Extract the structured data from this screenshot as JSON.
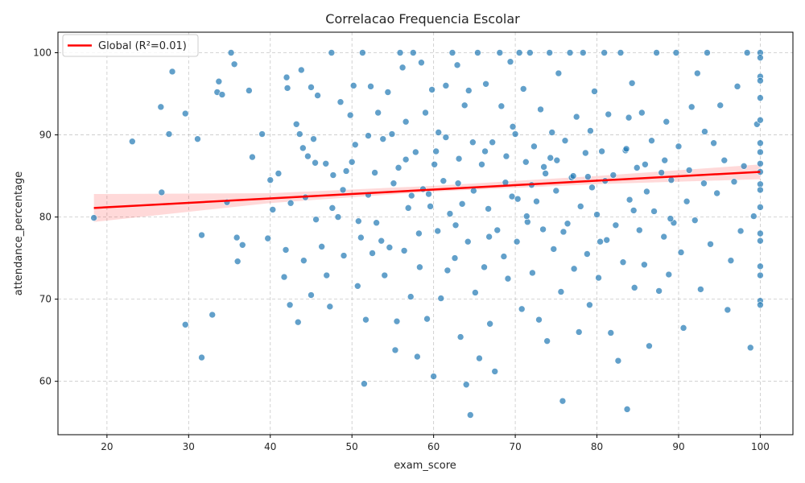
{
  "chart_data": {
    "type": "scatter",
    "title": "Correlacao Frequencia Escolar",
    "xlabel": "exam_score",
    "ylabel": "attendance_percentage",
    "xlim": [
      14,
      104
    ],
    "ylim": [
      53.5,
      102.5
    ],
    "xticks": [
      20,
      30,
      40,
      50,
      60,
      70,
      80,
      90,
      100
    ],
    "yticks": [
      60,
      70,
      80,
      90,
      100
    ],
    "grid": true,
    "legend": {
      "placement": "top-left",
      "entries": [
        "Global (R²=0.01)"
      ]
    },
    "series": [
      {
        "kind": "points",
        "color": "#1f77b4",
        "points": [
          [
            18.4,
            79.9
          ],
          [
            23.1,
            89.2
          ],
          [
            26.6,
            93.4
          ],
          [
            26.7,
            83.0
          ],
          [
            27.6,
            90.1
          ],
          [
            28.0,
            97.7
          ],
          [
            29.6,
            92.6
          ],
          [
            29.6,
            66.9
          ],
          [
            31.1,
            89.5
          ],
          [
            31.6,
            77.8
          ],
          [
            31.6,
            62.9
          ],
          [
            32.9,
            68.1
          ],
          [
            33.5,
            95.2
          ],
          [
            33.7,
            96.5
          ],
          [
            34.1,
            94.9
          ],
          [
            34.7,
            81.8
          ],
          [
            35.2,
            100.0
          ],
          [
            35.6,
            98.6
          ],
          [
            35.9,
            77.5
          ],
          [
            36.0,
            74.6
          ],
          [
            36.6,
            76.6
          ],
          [
            37.4,
            95.4
          ],
          [
            37.8,
            87.3
          ],
          [
            39.0,
            90.1
          ],
          [
            39.7,
            77.4
          ],
          [
            40.0,
            84.5
          ],
          [
            40.3,
            80.9
          ],
          [
            41.0,
            85.3
          ],
          [
            41.7,
            72.7
          ],
          [
            41.9,
            76.0
          ],
          [
            42.0,
            97.0
          ],
          [
            42.1,
            95.7
          ],
          [
            42.4,
            69.3
          ],
          [
            42.5,
            81.7
          ],
          [
            43.2,
            91.3
          ],
          [
            43.4,
            67.2
          ],
          [
            43.6,
            90.1
          ],
          [
            43.8,
            97.9
          ],
          [
            44.0,
            88.4
          ],
          [
            44.1,
            74.7
          ],
          [
            44.3,
            82.4
          ],
          [
            44.6,
            87.4
          ],
          [
            45.0,
            95.8
          ],
          [
            45.0,
            70.5
          ],
          [
            45.3,
            89.5
          ],
          [
            45.5,
            86.6
          ],
          [
            45.6,
            79.7
          ],
          [
            45.8,
            94.8
          ],
          [
            46.3,
            76.4
          ],
          [
            46.8,
            86.5
          ],
          [
            46.9,
            72.9
          ],
          [
            47.3,
            69.1
          ],
          [
            47.5,
            100.0
          ],
          [
            47.6,
            81.1
          ],
          [
            48.3,
            80.0
          ],
          [
            48.6,
            94.0
          ],
          [
            49.0,
            75.3
          ],
          [
            49.3,
            85.6
          ],
          [
            49.8,
            92.4
          ],
          [
            50.0,
            86.7
          ],
          [
            50.2,
            96.0
          ],
          [
            50.4,
            88.8
          ],
          [
            50.7,
            71.6
          ],
          [
            51.1,
            77.5
          ],
          [
            51.3,
            100.0
          ],
          [
            51.5,
            59.7
          ],
          [
            51.7,
            67.5
          ],
          [
            52.0,
            82.7
          ],
          [
            52.3,
            95.9
          ],
          [
            52.5,
            75.6
          ],
          [
            52.8,
            85.4
          ],
          [
            53.0,
            79.3
          ],
          [
            53.2,
            92.7
          ],
          [
            53.6,
            77.1
          ],
          [
            54.0,
            72.9
          ],
          [
            54.4,
            95.2
          ],
          [
            54.9,
            90.1
          ],
          [
            55.1,
            84.1
          ],
          [
            55.3,
            63.8
          ],
          [
            55.5,
            67.3
          ],
          [
            55.9,
            100.0
          ],
          [
            56.2,
            98.2
          ],
          [
            56.4,
            75.9
          ],
          [
            56.6,
            87.0
          ],
          [
            56.9,
            81.1
          ],
          [
            57.2,
            70.3
          ],
          [
            57.5,
            100.0
          ],
          [
            57.8,
            87.9
          ],
          [
            58.0,
            63.0
          ],
          [
            58.3,
            73.9
          ],
          [
            58.5,
            98.8
          ],
          [
            58.7,
            83.4
          ],
          [
            59.0,
            92.7
          ],
          [
            59.2,
            67.6
          ],
          [
            59.4,
            82.8
          ],
          [
            59.8,
            95.5
          ],
          [
            60.0,
            60.6
          ],
          [
            60.1,
            86.4
          ],
          [
            60.5,
            78.3
          ],
          [
            60.6,
            90.3
          ],
          [
            60.9,
            70.1
          ],
          [
            61.2,
            84.4
          ],
          [
            61.5,
            96.0
          ],
          [
            61.7,
            73.5
          ],
          [
            62.0,
            80.4
          ],
          [
            62.3,
            100.0
          ],
          [
            62.6,
            75.0
          ],
          [
            62.9,
            98.5
          ],
          [
            63.1,
            87.1
          ],
          [
            63.3,
            65.4
          ],
          [
            63.5,
            81.6
          ],
          [
            63.8,
            93.6
          ],
          [
            64.0,
            59.6
          ],
          [
            64.2,
            77.0
          ],
          [
            64.5,
            55.9
          ],
          [
            64.8,
            89.1
          ],
          [
            65.1,
            70.8
          ],
          [
            65.4,
            100.0
          ],
          [
            65.6,
            62.8
          ],
          [
            65.9,
            86.4
          ],
          [
            66.2,
            73.9
          ],
          [
            66.4,
            96.2
          ],
          [
            66.7,
            81.0
          ],
          [
            66.9,
            67.0
          ],
          [
            67.2,
            89.1
          ],
          [
            67.5,
            61.2
          ],
          [
            67.8,
            78.4
          ],
          [
            68.1,
            100.0
          ],
          [
            68.3,
            93.5
          ],
          [
            68.6,
            75.2
          ],
          [
            68.8,
            84.2
          ],
          [
            69.1,
            72.5
          ],
          [
            69.4,
            98.9
          ],
          [
            69.6,
            82.5
          ],
          [
            70.0,
            90.1
          ],
          [
            70.2,
            77.0
          ],
          [
            70.5,
            100.0
          ],
          [
            70.8,
            68.8
          ],
          [
            71.0,
            95.6
          ],
          [
            71.3,
            86.7
          ],
          [
            71.5,
            79.4
          ],
          [
            71.8,
            100.0
          ],
          [
            72.1,
            73.2
          ],
          [
            72.3,
            88.6
          ],
          [
            72.6,
            81.9
          ],
          [
            72.9,
            67.5
          ],
          [
            73.1,
            93.1
          ],
          [
            73.4,
            78.5
          ],
          [
            73.7,
            85.3
          ],
          [
            73.9,
            64.9
          ],
          [
            74.2,
            100.0
          ],
          [
            74.5,
            90.3
          ],
          [
            74.7,
            76.1
          ],
          [
            75.0,
            83.2
          ],
          [
            75.3,
            97.5
          ],
          [
            75.6,
            70.9
          ],
          [
            75.8,
            57.6
          ],
          [
            76.1,
            89.3
          ],
          [
            76.4,
            79.2
          ],
          [
            76.7,
            100.0
          ],
          [
            76.9,
            84.8
          ],
          [
            77.2,
            73.7
          ],
          [
            77.5,
            92.2
          ],
          [
            77.8,
            66.0
          ],
          [
            78.0,
            81.3
          ],
          [
            78.3,
            100.0
          ],
          [
            78.6,
            87.8
          ],
          [
            78.8,
            75.5
          ],
          [
            79.1,
            69.3
          ],
          [
            79.4,
            83.6
          ],
          [
            79.7,
            95.3
          ],
          [
            80.0,
            80.3
          ],
          [
            80.2,
            72.6
          ],
          [
            80.6,
            88.0
          ],
          [
            80.9,
            100.0
          ],
          [
            81.2,
            77.2
          ],
          [
            81.4,
            92.5
          ],
          [
            81.7,
            65.9
          ],
          [
            82.0,
            85.1
          ],
          [
            82.3,
            79.0
          ],
          [
            82.6,
            62.5
          ],
          [
            82.9,
            100.0
          ],
          [
            83.2,
            74.5
          ],
          [
            83.5,
            88.1
          ],
          [
            83.7,
            56.6
          ],
          [
            84.0,
            82.1
          ],
          [
            84.3,
            96.3
          ],
          [
            84.6,
            71.4
          ],
          [
            84.9,
            86.0
          ],
          [
            85.2,
            78.4
          ],
          [
            85.5,
            92.7
          ],
          [
            85.8,
            74.2
          ],
          [
            86.1,
            83.1
          ],
          [
            86.4,
            64.3
          ],
          [
            86.7,
            89.3
          ],
          [
            87.0,
            80.7
          ],
          [
            87.3,
            100.0
          ],
          [
            87.6,
            71.0
          ],
          [
            87.9,
            85.4
          ],
          [
            88.2,
            77.6
          ],
          [
            88.5,
            91.6
          ],
          [
            88.8,
            73.0
          ],
          [
            89.1,
            84.5
          ],
          [
            89.4,
            79.3
          ],
          [
            89.7,
            100.0
          ],
          [
            90.0,
            88.6
          ],
          [
            90.3,
            75.7
          ],
          [
            90.6,
            66.5
          ],
          [
            91.0,
            81.9
          ],
          [
            91.3,
            85.7
          ],
          [
            91.6,
            93.4
          ],
          [
            92.0,
            79.6
          ],
          [
            92.3,
            97.5
          ],
          [
            92.7,
            71.2
          ],
          [
            93.1,
            84.1
          ],
          [
            93.5,
            100.0
          ],
          [
            93.9,
            76.7
          ],
          [
            94.3,
            89.0
          ],
          [
            94.7,
            82.9
          ],
          [
            95.1,
            93.6
          ],
          [
            95.6,
            86.9
          ],
          [
            96.0,
            68.7
          ],
          [
            96.4,
            74.7
          ],
          [
            96.8,
            84.3
          ],
          [
            97.2,
            95.9
          ],
          [
            97.6,
            78.3
          ],
          [
            98.0,
            86.2
          ],
          [
            98.4,
            100.0
          ],
          [
            98.8,
            64.1
          ],
          [
            99.2,
            80.1
          ],
          [
            99.6,
            91.3
          ],
          [
            100.0,
            100.0
          ],
          [
            100.0,
            97.1
          ],
          [
            100.0,
            94.5
          ],
          [
            100.0,
            91.8
          ],
          [
            100.0,
            89.0
          ],
          [
            100.0,
            86.5
          ],
          [
            100.0,
            84.0
          ],
          [
            100.0,
            81.2
          ],
          [
            100.0,
            78.0
          ],
          [
            100.0,
            74.0
          ],
          [
            100.0,
            72.9
          ],
          [
            100.0,
            69.8
          ],
          [
            100.0,
            99.4
          ],
          [
            100.0,
            96.6
          ],
          [
            100.0,
            87.9
          ],
          [
            100.0,
            85.5
          ],
          [
            100.0,
            83.3
          ],
          [
            100.0,
            77.1
          ],
          [
            100.0,
            69.3
          ],
          [
            47.7,
            85.1
          ],
          [
            53.8,
            89.5
          ],
          [
            57.3,
            82.6
          ],
          [
            61.5,
            89.7
          ],
          [
            64.3,
            95.4
          ],
          [
            68.9,
            87.4
          ],
          [
            72.0,
            83.9
          ],
          [
            75.1,
            86.9
          ],
          [
            79.2,
            90.5
          ],
          [
            83.9,
            92.1
          ],
          [
            48.9,
            83.3
          ],
          [
            55.7,
            86.0
          ],
          [
            59.6,
            81.3
          ],
          [
            63.0,
            84.1
          ],
          [
            66.3,
            88.0
          ],
          [
            70.3,
            82.2
          ],
          [
            73.5,
            86.1
          ],
          [
            77.1,
            85.0
          ],
          [
            81.0,
            84.4
          ],
          [
            85.9,
            86.4
          ],
          [
            52.0,
            89.9
          ],
          [
            56.6,
            91.6
          ],
          [
            60.3,
            88.0
          ],
          [
            64.9,
            83.2
          ],
          [
            69.7,
            91.0
          ],
          [
            74.3,
            87.2
          ],
          [
            78.9,
            84.9
          ],
          [
            83.6,
            88.3
          ],
          [
            88.3,
            86.9
          ],
          [
            93.2,
            90.4
          ],
          [
            50.8,
            79.5
          ],
          [
            54.6,
            76.3
          ],
          [
            58.2,
            78.0
          ],
          [
            62.7,
            79.0
          ],
          [
            66.8,
            77.6
          ],
          [
            71.4,
            80.1
          ],
          [
            75.9,
            78.2
          ],
          [
            80.4,
            77.0
          ],
          [
            84.5,
            80.8
          ],
          [
            89.0,
            79.8
          ]
        ]
      },
      {
        "kind": "regression",
        "name": "Global (R²=0.01)",
        "color": "#ff0000",
        "line": [
          [
            18.4,
            81.1
          ],
          [
            100.0,
            85.5
          ]
        ],
        "ci_upper": [
          [
            18.4,
            82.8
          ],
          [
            40.0,
            82.9
          ],
          [
            60.0,
            83.8
          ],
          [
            80.0,
            85.0
          ],
          [
            100.0,
            86.4
          ]
        ],
        "ci_lower": [
          [
            18.4,
            79.4
          ],
          [
            40.0,
            81.7
          ],
          [
            60.0,
            83.1
          ],
          [
            80.0,
            84.0
          ],
          [
            100.0,
            84.6
          ]
        ]
      }
    ]
  }
}
